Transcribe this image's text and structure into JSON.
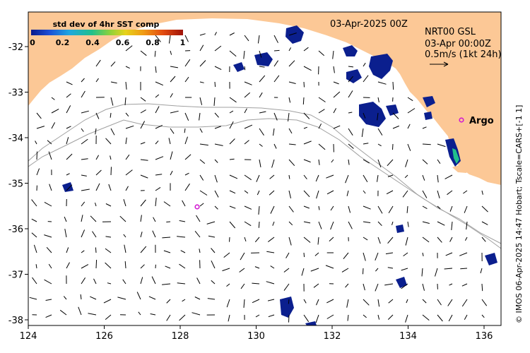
{
  "title": "03-Apr-2025 00Z",
  "product": {
    "line1": "NRT00 GSL",
    "line2": "03-Apr 00:00Z",
    "line3": "0.5m/s (1kt 24h)"
  },
  "colorbar": {
    "title": "std dev of 4hr SST comp",
    "ticks": [
      "0",
      "0.2",
      "0.4",
      "0.6",
      "0.8",
      "1"
    ],
    "colors": [
      "#0a1a8c",
      "#1c4fd6",
      "#1fa6e0",
      "#21c08b",
      "#8ed23a",
      "#e6d21a",
      "#f09a14",
      "#e24a10",
      "#9e1208"
    ]
  },
  "float_label": "Argo",
  "float_marker_color": "#d21ad2",
  "credit": "© IMOS 06-Apr-2025 14:47 Hobart; Tscale=CARS+[-1 1]",
  "axes": {
    "x_ticks": [
      "124",
      "126",
      "128",
      "130",
      "132",
      "134",
      "136"
    ],
    "y_ticks": [
      "-32",
      "-33",
      "-34",
      "-35",
      "-36",
      "-37",
      "-38"
    ]
  },
  "colors": {
    "land": "#fcc896",
    "sst_patch": "#0b1f8e",
    "contour": "#a0a0a0",
    "vector": "#000000"
  }
}
